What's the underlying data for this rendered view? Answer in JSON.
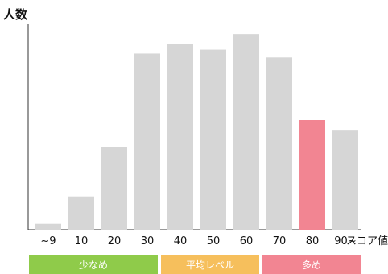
{
  "chart_data": {
    "type": "bar",
    "ylabel": "人数",
    "xlabel": "スコア値",
    "categories": [
      "~9",
      "10",
      "20",
      "30",
      "40",
      "50",
      "60",
      "70",
      "80",
      "90~"
    ],
    "values": [
      3,
      17,
      42,
      90,
      95,
      92,
      100,
      88,
      56,
      51
    ],
    "ylim": [
      0,
      105
    ],
    "grid": false,
    "colors": {
      "default": "#d6d6d6",
      "highlight": "#f28592",
      "axis": "#333333"
    },
    "highlight_category": "80"
  },
  "bands": [
    {
      "label": "少なめ",
      "color": "#8fcb4a"
    },
    {
      "label": "平均レベル",
      "color": "#f6bf5c"
    },
    {
      "label": "多め",
      "color": "#f28592"
    }
  ]
}
